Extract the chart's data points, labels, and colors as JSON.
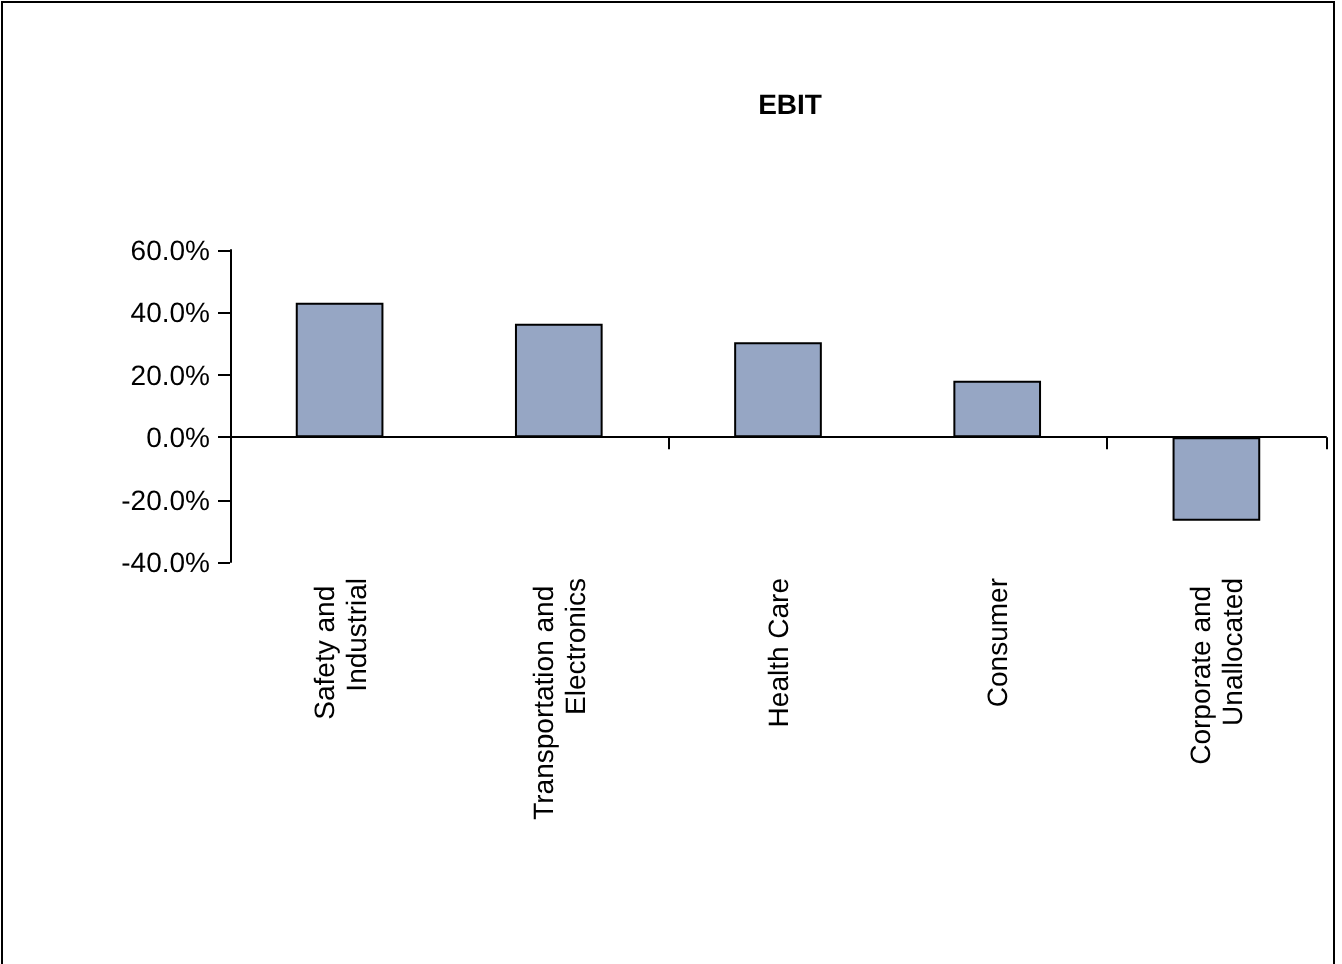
{
  "chart_data": {
    "type": "bar",
    "title": "EBIT",
    "categories": [
      "Safety and Industrial",
      "Transportation and Electronics",
      "Health Care",
      "Consumer",
      "Corporate and Unallocated"
    ],
    "values": [
      43.1,
      36.4,
      30.4,
      18.1,
      -26.8
    ],
    "color": "#96a6c4",
    "ylim": [
      -40,
      60
    ],
    "yticks": [
      {
        "value": -40,
        "label": "-40.0%"
      },
      {
        "value": -20,
        "label": "-20.0%"
      },
      {
        "value": 0,
        "label": "0.0%"
      },
      {
        "value": 20,
        "label": "20.0%"
      },
      {
        "value": 40,
        "label": "40.0%"
      },
      {
        "value": 60,
        "label": "60.0%"
      }
    ],
    "tick_labels": "xy"
  }
}
